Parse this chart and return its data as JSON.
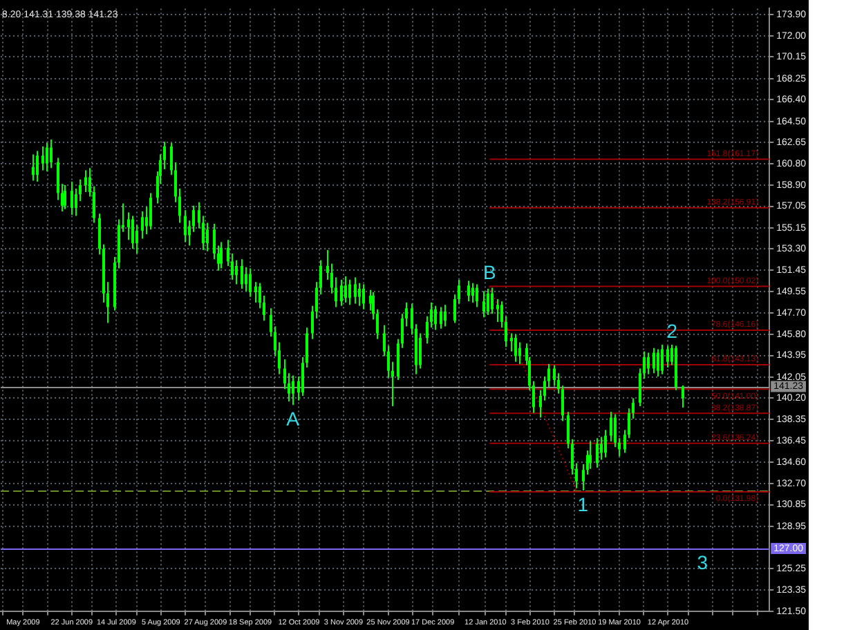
{
  "chart_data": {
    "type": "candlestick",
    "color": "#00ff00",
    "x": [
      "2009-06-03",
      "2009-06-05",
      "2009-06-08",
      "2009-06-10",
      "2009-06-12",
      "2009-06-15",
      "2009-06-17",
      "2009-06-19",
      "2009-06-22",
      "2009-06-24",
      "2009-06-26",
      "2009-06-29",
      "2009-07-01",
      "2009-07-03",
      "2009-07-06",
      "2009-07-08",
      "2009-07-10",
      "2009-07-13",
      "2009-07-15",
      "2009-07-17",
      "2009-07-20",
      "2009-07-22",
      "2009-07-24",
      "2009-07-27",
      "2009-07-29",
      "2009-07-31",
      "2009-08-03",
      "2009-08-05",
      "2009-08-07",
      "2009-08-10",
      "2009-08-12",
      "2009-08-14",
      "2009-08-17",
      "2009-08-19",
      "2009-08-21",
      "2009-08-24",
      "2009-08-26",
      "2009-08-28",
      "2009-08-31",
      "2009-09-02",
      "2009-09-04",
      "2009-09-07",
      "2009-09-09",
      "2009-09-11",
      "2009-09-14",
      "2009-09-16",
      "2009-09-18",
      "2009-09-21",
      "2009-09-23",
      "2009-09-25",
      "2009-09-28",
      "2009-09-30",
      "2009-10-02",
      "2009-10-05",
      "2009-10-07",
      "2009-10-09",
      "2009-10-12",
      "2009-10-14",
      "2009-10-16",
      "2009-10-19",
      "2009-10-21",
      "2009-10-23",
      "2009-10-26",
      "2009-10-28",
      "2009-10-30",
      "2009-11-02",
      "2009-11-04",
      "2009-11-06",
      "2009-11-09",
      "2009-11-11",
      "2009-11-13",
      "2009-11-16",
      "2009-11-18",
      "2009-11-20",
      "2009-11-23",
      "2009-11-25",
      "2009-11-27",
      "2009-11-30",
      "2009-12-02",
      "2009-12-04",
      "2009-12-07",
      "2009-12-09",
      "2009-12-11",
      "2009-12-14",
      "2009-12-16",
      "2009-12-18",
      "2009-12-21",
      "2009-12-23",
      "2009-12-28",
      "2009-12-30",
      "2010-01-04",
      "2010-01-06",
      "2010-01-08",
      "2010-01-11",
      "2010-01-13",
      "2010-01-15",
      "2010-01-18",
      "2010-01-20",
      "2010-01-22",
      "2010-01-25",
      "2010-01-27",
      "2010-01-29",
      "2010-02-01",
      "2010-02-03",
      "2010-02-05",
      "2010-02-08",
      "2010-02-10",
      "2010-02-12",
      "2010-02-15",
      "2010-02-17",
      "2010-02-19",
      "2010-02-22",
      "2010-02-24",
      "2010-02-26",
      "2010-03-01",
      "2010-03-03",
      "2010-03-05",
      "2010-03-08",
      "2010-03-10",
      "2010-03-12",
      "2010-03-15",
      "2010-03-17",
      "2010-03-19",
      "2010-03-22",
      "2010-03-24",
      "2010-03-26",
      "2010-03-29",
      "2010-03-31",
      "2010-04-02",
      "2010-04-05",
      "2010-04-07",
      "2010-04-09",
      "2010-04-12",
      "2010-04-14",
      "2010-04-16",
      "2010-04-19"
    ],
    "ohlc": [
      [
        160.5,
        161.6,
        159.3,
        159.8
      ],
      [
        159.8,
        161.9,
        159.2,
        161.5
      ],
      [
        161.5,
        162.3,
        160.2,
        160.8
      ],
      [
        160.8,
        162.6,
        160.1,
        162.2
      ],
      [
        162.2,
        162.9,
        160.4,
        160.9
      ],
      [
        160.9,
        161.3,
        157.6,
        158.2
      ],
      [
        158.2,
        159.0,
        156.6,
        157.1
      ],
      [
        157.1,
        158.9,
        156.8,
        158.4
      ],
      [
        158.4,
        159.2,
        156.3,
        156.9
      ],
      [
        156.9,
        158.6,
        156.2,
        158.1
      ],
      [
        158.1,
        159.4,
        157.5,
        158.9
      ],
      [
        158.9,
        160.2,
        158.3,
        159.6
      ],
      [
        159.6,
        160.4,
        157.9,
        158.3
      ],
      [
        158.3,
        158.8,
        155.6,
        156.0
      ],
      [
        156.0,
        156.4,
        152.8,
        153.3
      ],
      [
        153.3,
        153.7,
        148.6,
        149.4
      ],
      [
        149.4,
        150.4,
        146.8,
        148.2
      ],
      [
        148.2,
        152.6,
        147.9,
        152.1
      ],
      [
        152.1,
        155.9,
        151.6,
        155.4
      ],
      [
        155.4,
        157.3,
        154.8,
        155.2
      ],
      [
        155.2,
        156.5,
        154.1,
        155.9
      ],
      [
        155.9,
        156.2,
        153.3,
        153.8
      ],
      [
        153.8,
        155.4,
        152.9,
        154.9
      ],
      [
        154.9,
        156.6,
        154.2,
        156.1
      ],
      [
        156.1,
        157.0,
        154.6,
        155.3
      ],
      [
        155.3,
        158.2,
        155.0,
        157.8
      ],
      [
        157.8,
        160.1,
        157.3,
        159.7
      ],
      [
        159.7,
        161.6,
        159.0,
        161.1
      ],
      [
        161.1,
        162.7,
        160.3,
        162.3
      ],
      [
        162.3,
        162.6,
        159.8,
        160.2
      ],
      [
        160.2,
        160.9,
        157.4,
        157.9
      ],
      [
        157.9,
        158.6,
        155.6,
        156.2
      ],
      [
        156.2,
        156.7,
        153.9,
        154.5
      ],
      [
        154.5,
        155.8,
        153.6,
        155.3
      ],
      [
        155.3,
        157.1,
        154.8,
        156.7
      ],
      [
        156.7,
        157.4,
        155.1,
        155.6
      ],
      [
        155.6,
        156.2,
        153.2,
        153.8
      ],
      [
        153.8,
        155.6,
        153.1,
        155.0
      ],
      [
        155.0,
        155.5,
        152.4,
        152.9
      ],
      [
        152.9,
        153.6,
        151.4,
        152.0
      ],
      [
        152.0,
        153.9,
        151.6,
        153.4
      ],
      [
        153.4,
        154.1,
        151.8,
        152.2
      ],
      [
        152.2,
        152.9,
        150.6,
        151.0
      ],
      [
        151.0,
        152.3,
        150.2,
        151.8
      ],
      [
        151.8,
        152.4,
        149.8,
        150.2
      ],
      [
        150.2,
        151.7,
        149.6,
        151.1
      ],
      [
        151.1,
        151.6,
        149.1,
        149.5
      ],
      [
        149.5,
        150.4,
        148.6,
        150.0
      ],
      [
        150.0,
        150.3,
        148.1,
        148.6
      ],
      [
        148.6,
        149.2,
        147.0,
        147.5
      ],
      [
        147.5,
        148.1,
        145.6,
        146.0
      ],
      [
        146.0,
        146.5,
        143.9,
        144.4
      ],
      [
        144.4,
        145.1,
        142.3,
        142.8
      ],
      [
        142.8,
        143.6,
        141.0,
        141.5
      ],
      [
        141.5,
        142.4,
        139.9,
        140.6
      ],
      [
        140.6,
        142.2,
        139.6,
        141.7
      ],
      [
        141.7,
        142.1,
        140.0,
        140.7
      ],
      [
        140.7,
        143.8,
        140.4,
        143.3
      ],
      [
        143.3,
        146.4,
        142.9,
        145.9
      ],
      [
        145.9,
        148.3,
        145.4,
        147.8
      ],
      [
        147.8,
        150.4,
        147.2,
        149.9
      ],
      [
        149.9,
        152.3,
        149.3,
        151.8
      ],
      [
        151.8,
        153.2,
        150.6,
        151.2
      ],
      [
        151.2,
        152.0,
        149.4,
        149.9
      ],
      [
        149.9,
        150.8,
        148.2,
        148.7
      ],
      [
        148.7,
        150.6,
        148.3,
        150.1
      ],
      [
        150.1,
        150.9,
        148.6,
        149.0
      ],
      [
        149.0,
        150.6,
        148.4,
        150.2
      ],
      [
        150.2,
        150.8,
        148.5,
        149.1
      ],
      [
        149.1,
        150.3,
        148.3,
        149.8
      ],
      [
        149.8,
        150.2,
        148.0,
        148.5
      ],
      [
        148.5,
        149.7,
        147.9,
        149.2
      ],
      [
        149.2,
        149.5,
        147.1,
        147.6
      ],
      [
        147.6,
        148.0,
        145.4,
        145.9
      ],
      [
        145.9,
        146.6,
        143.9,
        144.3
      ],
      [
        144.3,
        144.8,
        142.0,
        142.6
      ],
      [
        142.6,
        143.4,
        139.5,
        142.1
      ],
      [
        142.1,
        145.4,
        141.8,
        145.0
      ],
      [
        145.0,
        147.6,
        144.6,
        147.2
      ],
      [
        147.2,
        148.6,
        146.5,
        148.1
      ],
      [
        148.1,
        148.5,
        145.8,
        146.3
      ],
      [
        146.3,
        146.7,
        142.3,
        143.1
      ],
      [
        143.1,
        145.9,
        142.8,
        145.5
      ],
      [
        145.5,
        147.4,
        145.0,
        146.9
      ],
      [
        146.9,
        148.6,
        146.4,
        148.0
      ],
      [
        148.0,
        148.3,
        146.2,
        146.7
      ],
      [
        146.7,
        148.2,
        146.3,
        147.8
      ],
      [
        147.8,
        148.4,
        146.5,
        147.0
      ],
      [
        147.0,
        149.3,
        146.8,
        148.9
      ],
      [
        148.9,
        150.6,
        148.5,
        150.1
      ],
      [
        150.1,
        150.5,
        148.7,
        149.2
      ],
      [
        149.2,
        150.3,
        148.6,
        149.9
      ],
      [
        149.9,
        150.2,
        148.2,
        148.7
      ],
      [
        148.7,
        149.6,
        147.3,
        147.8
      ],
      [
        147.8,
        149.8,
        147.5,
        149.4
      ],
      [
        149.4,
        149.9,
        147.6,
        148.0
      ],
      [
        148.0,
        148.9,
        146.9,
        148.4
      ],
      [
        148.4,
        148.7,
        146.4,
        146.9
      ],
      [
        146.9,
        147.4,
        144.7,
        145.2
      ],
      [
        145.2,
        145.9,
        144.3,
        145.5
      ],
      [
        145.5,
        145.8,
        143.4,
        143.9
      ],
      [
        143.9,
        145.1,
        143.2,
        144.6
      ],
      [
        144.6,
        145.0,
        143.1,
        143.5
      ],
      [
        143.5,
        143.8,
        140.9,
        141.3
      ],
      [
        141.3,
        141.7,
        138.9,
        139.4
      ],
      [
        139.4,
        140.9,
        138.5,
        140.4
      ],
      [
        140.4,
        142.1,
        140.0,
        141.7
      ],
      [
        141.7,
        143.2,
        141.2,
        142.8
      ],
      [
        142.8,
        143.1,
        141.3,
        141.8
      ],
      [
        141.8,
        142.4,
        140.6,
        141.0
      ],
      [
        141.0,
        141.3,
        138.2,
        138.7
      ],
      [
        138.7,
        139.0,
        135.8,
        136.2
      ],
      [
        136.2,
        136.6,
        133.5,
        134.0
      ],
      [
        134.0,
        134.5,
        132.3,
        132.9
      ],
      [
        132.9,
        134.4,
        132.1,
        133.9
      ],
      [
        133.9,
        135.6,
        133.5,
        135.2
      ],
      [
        135.2,
        136.4,
        134.0,
        134.5
      ],
      [
        134.5,
        136.7,
        134.1,
        136.2
      ],
      [
        136.2,
        136.8,
        134.8,
        135.4
      ],
      [
        135.4,
        137.4,
        135.0,
        136.9
      ],
      [
        136.9,
        139.0,
        136.4,
        138.5
      ],
      [
        138.5,
        138.8,
        135.9,
        136.3
      ],
      [
        136.3,
        136.7,
        135.1,
        135.7
      ],
      [
        135.7,
        137.4,
        135.4,
        137.0
      ],
      [
        137.0,
        139.3,
        136.7,
        138.9
      ],
      [
        138.9,
        140.2,
        138.4,
        139.8
      ],
      [
        139.8,
        142.8,
        139.5,
        142.4
      ],
      [
        142.4,
        144.3,
        141.9,
        143.8
      ],
      [
        143.8,
        144.2,
        142.3,
        142.8
      ],
      [
        142.8,
        144.6,
        142.4,
        144.2
      ],
      [
        144.2,
        144.5,
        142.1,
        142.6
      ],
      [
        142.6,
        144.9,
        142.3,
        144.5
      ],
      [
        144.5,
        144.8,
        142.9,
        143.4
      ],
      [
        143.4,
        144.9,
        143.1,
        144.6
      ],
      [
        144.6,
        144.8,
        140.9,
        141.2
      ],
      [
        140.2,
        141.31,
        139.38,
        141.23
      ]
    ],
    "series": [
      {
        "type": "line",
        "name": "161.8(161.17)",
        "color": "#a00000",
        "x": [
          "2010-01-14",
          "2010-06-01"
        ],
        "values": [
          161.17,
          161.17
        ]
      },
      {
        "type": "line",
        "name": "138.2(156.91)",
        "color": "#a00000",
        "x": [
          "2010-01-14",
          "2010-06-01"
        ],
        "values": [
          156.91,
          156.91
        ]
      },
      {
        "type": "line",
        "name": "100.0(150.02)",
        "color": "#a00000",
        "x": [
          "2010-01-14",
          "2010-06-01"
        ],
        "values": [
          150.02,
          150.02
        ]
      },
      {
        "type": "line",
        "name": "78.6(146.16)",
        "color": "#a00000",
        "x": [
          "2010-01-14",
          "2010-06-01"
        ],
        "values": [
          146.16,
          146.16
        ]
      },
      {
        "type": "line",
        "name": "61.8(143.13)",
        "color": "#a00000",
        "x": [
          "2010-01-14",
          "2010-06-01"
        ],
        "values": [
          143.13,
          143.13
        ]
      },
      {
        "type": "line",
        "name": "50.0(141.00)",
        "color": "#a00000",
        "x": [
          "2010-01-14",
          "2010-06-01"
        ],
        "values": [
          141.0,
          141.0
        ]
      },
      {
        "type": "line",
        "name": "38.2(138.87)",
        "color": "#a00000",
        "x": [
          "2010-01-14",
          "2010-06-01"
        ],
        "values": [
          138.87,
          138.87
        ]
      },
      {
        "type": "line",
        "name": "23.6(136.24)",
        "color": "#a00000",
        "x": [
          "2010-01-14",
          "2010-06-01"
        ],
        "values": [
          136.24,
          136.24
        ]
      },
      {
        "type": "line",
        "name": "0.0(131.98)",
        "color": "#a00000",
        "x": [
          "2010-01-14",
          "2010-06-01"
        ],
        "values": [
          131.98,
          131.98
        ]
      },
      {
        "type": "line",
        "color": "#a00000",
        "line_style": "dotted",
        "x": [
          "2010-01-14",
          "2010-02-26"
        ],
        "values": [
          150.02,
          131.98
        ]
      }
    ],
    "xlim": [
      "2009-05-18",
      "2010-06-01"
    ],
    "ylim": [
      121.5,
      174.4
    ],
    "xticks": [
      {
        "value": "2009-05-19",
        "label": null
      },
      {
        "value": "2009-05-29",
        "label": "May 2009"
      },
      {
        "value": "2009-06-10",
        "label": null
      },
      {
        "value": "2009-06-22",
        "label": "22 Jun 2009"
      },
      {
        "value": "2009-07-02",
        "label": null
      },
      {
        "value": "2009-07-14",
        "label": "14 Jul 2009"
      },
      {
        "value": "2009-07-24",
        "label": null
      },
      {
        "value": "2009-08-05",
        "label": "5 Aug 2009"
      },
      {
        "value": "2009-08-17",
        "label": null
      },
      {
        "value": "2009-08-27",
        "label": "27 Aug 2009"
      },
      {
        "value": "2009-09-08",
        "label": null
      },
      {
        "value": "2009-09-18",
        "label": "18 Sep 2009"
      },
      {
        "value": "2009-09-30",
        "label": null
      },
      {
        "value": "2009-10-12",
        "label": "12 Oct 2009"
      },
      {
        "value": "2009-10-22",
        "label": null
      },
      {
        "value": "2009-11-03",
        "label": "3 Nov 2009"
      },
      {
        "value": "2009-11-13",
        "label": null
      },
      {
        "value": "2009-11-25",
        "label": "25 Nov 2009"
      },
      {
        "value": "2009-12-07",
        "label": null
      },
      {
        "value": "2009-12-17",
        "label": "17 Dec 2009"
      },
      {
        "value": "2009-12-30",
        "label": null
      },
      {
        "value": "2010-01-12",
        "label": "12 Jan 2010"
      },
      {
        "value": "2010-01-22",
        "label": null
      },
      {
        "value": "2010-02-03",
        "label": "3 Feb 2010"
      },
      {
        "value": "2010-02-15",
        "label": null
      },
      {
        "value": "2010-02-25",
        "label": "25 Feb 2010"
      },
      {
        "value": "2010-03-09",
        "label": null
      },
      {
        "value": "2010-03-19",
        "label": "19 Mar 2010"
      },
      {
        "value": "2010-03-31",
        "label": null
      },
      {
        "value": "2010-04-12",
        "label": "12 Apr 2010"
      },
      {
        "value": "2010-04-22",
        "label": null
      },
      {
        "value": "2010-05-04",
        "label": null
      },
      {
        "value": "2010-05-14",
        "label": null
      },
      {
        "value": "2010-05-26",
        "label": null
      }
    ],
    "yticks": [
      {
        "value": 173.9,
        "label": "173.90"
      },
      {
        "value": 172.0,
        "label": "172.00"
      },
      {
        "value": 170.15,
        "label": "170.15"
      },
      {
        "value": 168.25,
        "label": "168.25"
      },
      {
        "value": 166.4,
        "label": "166.40"
      },
      {
        "value": 164.5,
        "label": "164.50"
      },
      {
        "value": 162.65,
        "label": "162.65"
      },
      {
        "value": 160.8,
        "label": "160.80"
      },
      {
        "value": 158.9,
        "label": "158.90"
      },
      {
        "value": 157.05,
        "label": "157.05"
      },
      {
        "value": 155.15,
        "label": "155.15"
      },
      {
        "value": 153.3,
        "label": "153.30"
      },
      {
        "value": 151.45,
        "label": "151.45"
      },
      {
        "value": 149.55,
        "label": "149.55"
      },
      {
        "value": 147.7,
        "label": "147.70"
      },
      {
        "value": 145.8,
        "label": "145.80"
      },
      {
        "value": 143.95,
        "label": "143.95"
      },
      {
        "value": 142.05,
        "label": "142.05"
      },
      {
        "value": 140.2,
        "label": "140.20"
      },
      {
        "value": 138.35,
        "label": "138.35"
      },
      {
        "value": 136.45,
        "label": "136.45"
      },
      {
        "value": 134.6,
        "label": "134.60"
      },
      {
        "value": 132.7,
        "label": "132.70"
      },
      {
        "value": 130.85,
        "label": "130.85"
      },
      {
        "value": 128.95,
        "label": "128.95"
      },
      {
        "value": 125.25,
        "label": "125.25"
      },
      {
        "value": 123.35,
        "label": "123.35"
      },
      {
        "value": 121.5,
        "label": "121.50"
      }
    ],
    "grid": true,
    "ref_lines": [
      {
        "axis": "y",
        "value": 141.23,
        "label": "141.23",
        "color": "#8c8c8c"
      },
      {
        "axis": "y",
        "value": 127.0,
        "label": "127.00",
        "color": "#7b68ee"
      },
      {
        "axis": "y",
        "value": 132.05,
        "color": "#6b8e23",
        "line_style": "dashed"
      }
    ],
    "annotations": [
      "8.20 141.31 139.38 141.23",
      {
        "text": "A",
        "x": "2009-10-09",
        "y": 139.6
      },
      {
        "text": "B",
        "x": "2010-01-14",
        "y": 150.02
      },
      {
        "text": "1",
        "x": "2010-03-01",
        "y": 132.1
      },
      {
        "text": "2",
        "x": "2010-04-14",
        "y": 144.9
      },
      {
        "text": "3",
        "x": "2010-04-29",
        "y": 127.0
      }
    ]
  }
}
